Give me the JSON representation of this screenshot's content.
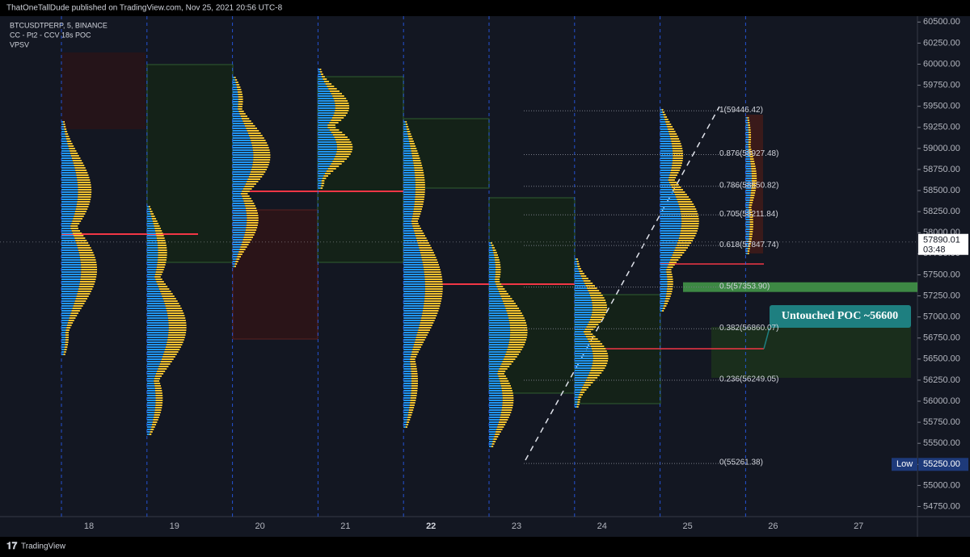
{
  "header": {
    "text": "ThatOneTallDude published on TradingView.com, Nov 25, 2021 20:56 UTC-8"
  },
  "legend": [
    "BTCUSDTPERP, 5, BINANCE",
    "CC - Pt2 - CCV 18s POC",
    "VPSV"
  ],
  "chart_data": {
    "type": "fib",
    "ylim": [
      54630,
      60570
    ],
    "yticks": [
      {
        "value": 60500,
        "label": "60500.00"
      },
      {
        "value": 60250,
        "label": "60250.00"
      },
      {
        "value": 60000,
        "label": "60000.00"
      },
      {
        "value": 59750,
        "label": "59750.00"
      },
      {
        "value": 59500,
        "label": "59500.00"
      },
      {
        "value": 59250,
        "label": "59250.00"
      },
      {
        "value": 59000,
        "label": "59000.00"
      },
      {
        "value": 58750,
        "label": "58750.00"
      },
      {
        "value": 58500,
        "label": "58500.00"
      },
      {
        "value": 58250,
        "label": "58250.00"
      },
      {
        "value": 58000,
        "label": "58000.00"
      },
      {
        "value": 57750,
        "label": "57750.00"
      },
      {
        "value": 57500,
        "label": "57500.00"
      },
      {
        "value": 57250,
        "label": "57250.00"
      },
      {
        "value": 57000,
        "label": "57000.00"
      },
      {
        "value": 56750,
        "label": "56750.00"
      },
      {
        "value": 56500,
        "label": "56500.00"
      },
      {
        "value": 56250,
        "label": "56250.00"
      },
      {
        "value": 56000,
        "label": "56000.00"
      },
      {
        "value": 55750,
        "label": "55750.00"
      },
      {
        "value": 55500,
        "label": "55500.00"
      },
      {
        "value": 55250,
        "label": "55250.00"
      },
      {
        "value": 55000,
        "label": "55000.00"
      },
      {
        "value": 54750,
        "label": "54750.00"
      }
    ],
    "categories": [
      "18",
      "19",
      "20",
      "21",
      "22",
      "23",
      "24",
      "25",
      "26",
      "27"
    ],
    "fib_levels": [
      {
        "value": 59446.42,
        "label": "1(59446.42)"
      },
      {
        "value": 58927.48,
        "label": "0.876(58927.48)"
      },
      {
        "value": 58550.82,
        "label": "0.786(58550.82)"
      },
      {
        "value": 58211.84,
        "label": "0.705(58211.84)"
      },
      {
        "value": 57847.74,
        "label": "0.618(57847.74)"
      },
      {
        "value": 57353.9,
        "label": "0.5(57353.90)"
      },
      {
        "value": 56860.07,
        "label": "0.382(56860.07)"
      },
      {
        "value": 56249.05,
        "label": "0.236(56249.05)"
      },
      {
        "value": 55261.38,
        "label": "0(55261.38)"
      }
    ],
    "last_price": 57890.01,
    "countdown": "03:48",
    "low": {
      "name": "Low",
      "value": 55250,
      "label": "55250.00"
    },
    "annotation": "Untouched POC ~56600"
  },
  "footer": {
    "logo": "TradingView"
  }
}
